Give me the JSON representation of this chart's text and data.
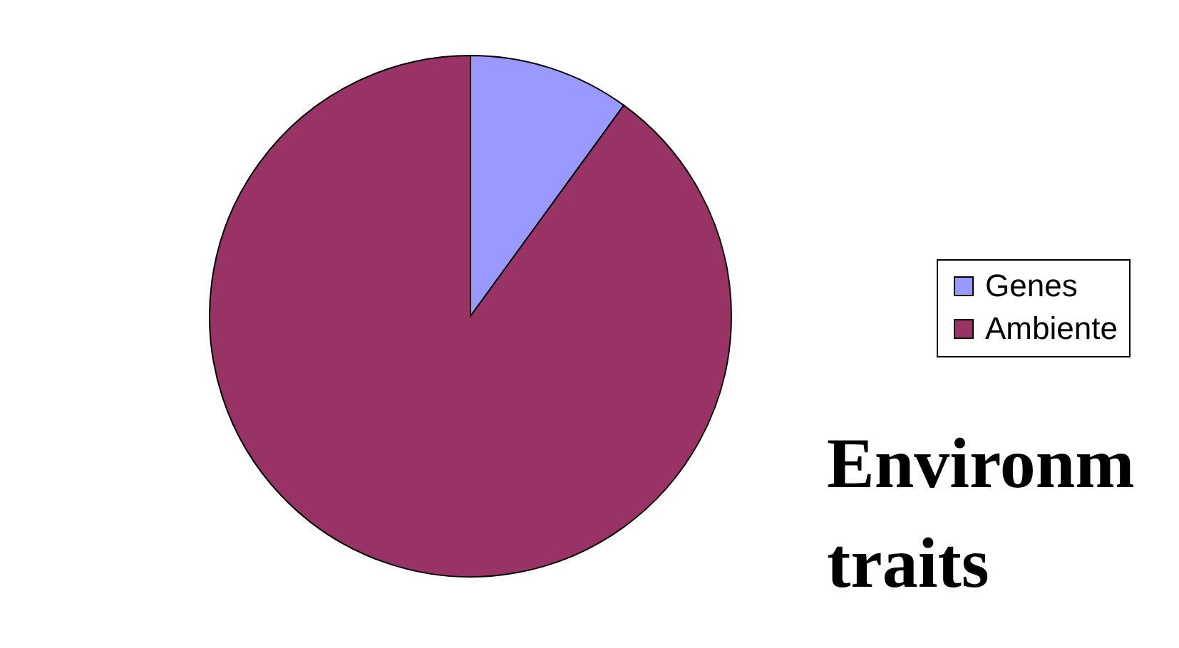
{
  "chart_data": {
    "type": "pie",
    "categories": [
      "Genes",
      "Ambiente"
    ],
    "values": [
      10,
      90
    ],
    "colors": [
      "#9999ff",
      "#993366"
    ],
    "legend": "right",
    "annotations": [
      "Environm",
      "traits"
    ]
  }
}
